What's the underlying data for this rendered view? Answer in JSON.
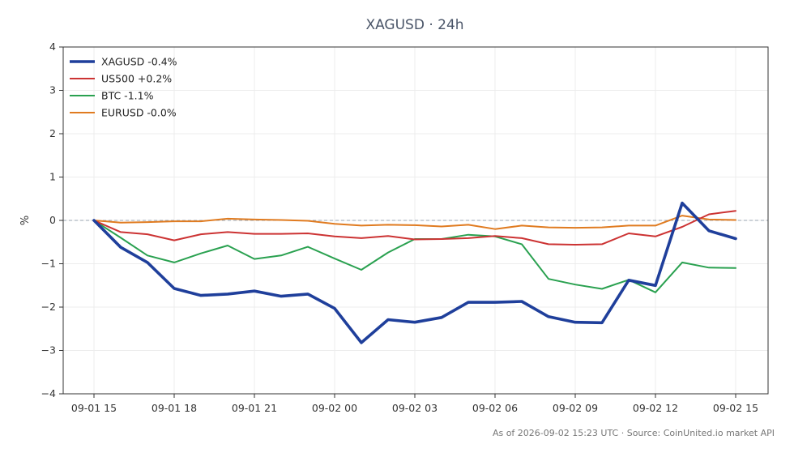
{
  "chart_data": {
    "type": "line",
    "title": "XAGUSD · 24h",
    "ylabel": "%",
    "ylim": [
      -4,
      4
    ],
    "yticks": [
      "4",
      "3",
      "2",
      "1",
      "0",
      "−1",
      "−2",
      "−3",
      "−4"
    ],
    "x": [
      "09-01 15",
      "09-01 16",
      "09-01 17",
      "09-01 18",
      "09-01 19",
      "09-01 20",
      "09-01 21",
      "09-01 22",
      "09-01 23",
      "09-02 00",
      "09-02 01",
      "09-02 02",
      "09-02 03",
      "09-02 04",
      "09-02 05",
      "09-02 06",
      "09-02 07",
      "09-02 08",
      "09-02 09",
      "09-02 10",
      "09-02 11",
      "09-02 12",
      "09-02 13",
      "09-02 14",
      "09-02 15"
    ],
    "xtick_labels": [
      "09-01 15",
      "09-01 18",
      "09-01 21",
      "09-02 00",
      "09-02 03",
      "09-02 06",
      "09-02 09",
      "09-02 12",
      "09-02 15"
    ],
    "grid": true,
    "legend_position": "top-left",
    "zero_line": true,
    "series": [
      {
        "name": "XAGUSD -0.4%",
        "color": "#1f3f9b",
        "values": [
          0.0,
          -0.62,
          -0.97,
          -1.57,
          -1.73,
          -1.7,
          -1.63,
          -1.75,
          -1.7,
          -2.03,
          -2.82,
          -2.29,
          -2.35,
          -2.24,
          -1.89,
          -1.89,
          -1.87,
          -2.22,
          -2.35,
          -2.36,
          -1.38,
          -1.5,
          0.4,
          -0.24,
          -0.42
        ]
      },
      {
        "name": "US500 +0.2%",
        "color": "#cc3333",
        "values": [
          0.0,
          -0.27,
          -0.32,
          -0.46,
          -0.32,
          -0.27,
          -0.31,
          -0.31,
          -0.3,
          -0.37,
          -0.41,
          -0.36,
          -0.44,
          -0.43,
          -0.41,
          -0.36,
          -0.41,
          -0.55,
          -0.56,
          -0.55,
          -0.3,
          -0.37,
          -0.15,
          0.14,
          0.22
        ]
      },
      {
        "name": "BTC -1.1%",
        "color": "#2aa150",
        "values": [
          0.0,
          -0.4,
          -0.81,
          -0.97,
          -0.76,
          -0.58,
          -0.89,
          -0.81,
          -0.61,
          -0.88,
          -1.14,
          -0.74,
          -0.43,
          -0.43,
          -0.33,
          -0.37,
          -0.55,
          -1.35,
          -1.48,
          -1.58,
          -1.37,
          -1.66,
          -0.97,
          -1.09,
          -1.1
        ]
      },
      {
        "name": "EURUSD -0.0%",
        "color": "#e07b20",
        "values": [
          0.0,
          -0.05,
          -0.04,
          -0.02,
          -0.02,
          0.04,
          0.02,
          0.01,
          -0.01,
          -0.08,
          -0.12,
          -0.1,
          -0.11,
          -0.14,
          -0.1,
          -0.2,
          -0.12,
          -0.16,
          -0.17,
          -0.16,
          -0.12,
          -0.12,
          0.11,
          0.02,
          0.01
        ]
      }
    ],
    "footer": "As of 2026-09-02 15:23 UTC · Source: CoinUnited.io market API"
  }
}
